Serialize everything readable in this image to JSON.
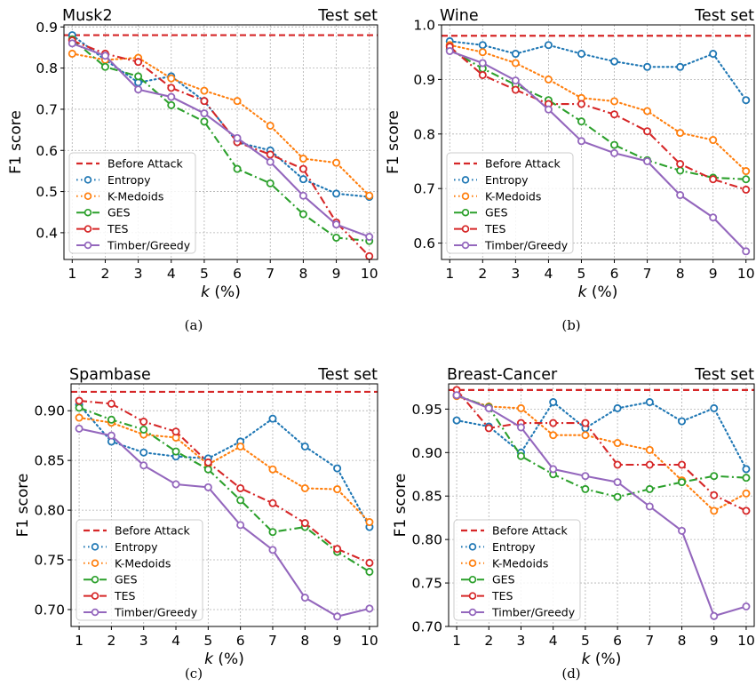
{
  "series_styles": [
    {
      "name": "Entropy",
      "color": "#1f77b4",
      "dash": "dotted"
    },
    {
      "name": "K-Medoids",
      "color": "#ff7f0e",
      "dash": "dotted"
    },
    {
      "name": "GES",
      "color": "#2ca02c",
      "dash": "dashdot"
    },
    {
      "name": "TES",
      "color": "#d62728",
      "dash": "dashdot"
    },
    {
      "name": "Timber/Greedy",
      "color": "#9467bd",
      "dash": "solid"
    }
  ],
  "baseline_style": {
    "name": "Before Attack",
    "color": "#d62728",
    "dash": "dashed"
  },
  "chart_data": [
    {
      "type": "line",
      "caption": "(a)",
      "title_left": "Musk2",
      "title_right": "Test set",
      "xlabel": "k (%)",
      "ylabel": "F1 score",
      "x": [
        1,
        2,
        3,
        4,
        5,
        6,
        7,
        8,
        9,
        10
      ],
      "xlim": [
        0.75,
        10.25
      ],
      "ylim": [
        0.335,
        0.905
      ],
      "yticks": [
        0.4,
        0.5,
        0.6,
        0.7,
        0.8,
        0.9
      ],
      "ytick_labels": [
        "0.4",
        "0.5",
        "0.6",
        "0.7",
        "0.8",
        "0.9"
      ],
      "grid": true,
      "legend": "lower-left",
      "baseline": {
        "name": "Before Attack",
        "value": 0.88
      },
      "series": [
        {
          "name": "Entropy",
          "values": [
            0.88,
            0.82,
            0.765,
            0.78,
            0.72,
            0.62,
            0.6,
            0.53,
            0.495,
            0.487
          ]
        },
        {
          "name": "K-Medoids",
          "values": [
            0.835,
            0.82,
            0.825,
            0.775,
            0.745,
            0.72,
            0.66,
            0.58,
            0.57,
            0.49
          ]
        },
        {
          "name": "GES",
          "values": [
            0.87,
            0.803,
            0.78,
            0.71,
            0.67,
            0.555,
            0.52,
            0.445,
            0.388,
            0.38
          ]
        },
        {
          "name": "TES",
          "values": [
            0.867,
            0.835,
            0.815,
            0.752,
            0.72,
            0.62,
            0.59,
            0.555,
            0.425,
            0.343
          ]
        },
        {
          "name": "Timber/Greedy",
          "values": [
            0.86,
            0.83,
            0.748,
            0.73,
            0.69,
            0.63,
            0.572,
            0.49,
            0.42,
            0.39
          ]
        }
      ]
    },
    {
      "type": "line",
      "caption": "(b)",
      "title_left": "Wine",
      "title_right": "Test set",
      "xlabel": "k (%)",
      "ylabel": "F1 score",
      "x": [
        1,
        2,
        3,
        4,
        5,
        6,
        7,
        8,
        9,
        10
      ],
      "xlim": [
        0.75,
        10.25
      ],
      "ylim": [
        0.57,
        1.0
      ],
      "yticks": [
        0.6,
        0.7,
        0.8,
        0.9,
        1.0
      ],
      "ytick_labels": [
        "0.6",
        "0.7",
        "0.8",
        "0.9",
        "1.0"
      ],
      "grid": true,
      "legend": "lower-left",
      "baseline": {
        "name": "Before Attack",
        "value": 0.98
      },
      "series": [
        {
          "name": "Entropy",
          "values": [
            0.97,
            0.963,
            0.947,
            0.963,
            0.947,
            0.933,
            0.923,
            0.923,
            0.947,
            0.862
          ]
        },
        {
          "name": "K-Medoids",
          "values": [
            0.963,
            0.95,
            0.93,
            0.9,
            0.866,
            0.86,
            0.842,
            0.802,
            0.789,
            0.732
          ]
        },
        {
          "name": "GES",
          "values": [
            0.955,
            0.92,
            0.89,
            0.862,
            0.823,
            0.78,
            0.752,
            0.733,
            0.72,
            0.717
          ]
        },
        {
          "name": "TES",
          "values": [
            0.96,
            0.908,
            0.881,
            0.855,
            0.855,
            0.836,
            0.805,
            0.745,
            0.717,
            0.698
          ]
        },
        {
          "name": "Timber/Greedy",
          "values": [
            0.952,
            0.93,
            0.898,
            0.845,
            0.787,
            0.765,
            0.75,
            0.688,
            0.647,
            0.585
          ]
        }
      ]
    },
    {
      "type": "line",
      "caption": "(c)",
      "title_left": "Spambase",
      "title_right": "Test set",
      "xlabel": "k (%)",
      "ylabel": "F1 score",
      "x": [
        1,
        2,
        3,
        4,
        5,
        6,
        7,
        8,
        9,
        10
      ],
      "xlim": [
        0.75,
        10.25
      ],
      "ylim": [
        0.683,
        0.927
      ],
      "yticks": [
        0.7,
        0.75,
        0.8,
        0.85,
        0.9
      ],
      "ytick_labels": [
        "0.70",
        "0.75",
        "0.80",
        "0.85",
        "0.90"
      ],
      "grid": true,
      "legend": "lower-left",
      "baseline": {
        "name": "Before Attack",
        "value": 0.919
      },
      "series": [
        {
          "name": "Entropy",
          "values": [
            0.906,
            0.869,
            0.858,
            0.854,
            0.852,
            0.869,
            0.892,
            0.864,
            0.842,
            0.783
          ]
        },
        {
          "name": "K-Medoids",
          "values": [
            0.893,
            0.888,
            0.876,
            0.873,
            0.846,
            0.864,
            0.841,
            0.822,
            0.821,
            0.788
          ]
        },
        {
          "name": "GES",
          "values": [
            0.903,
            0.891,
            0.881,
            0.859,
            0.841,
            0.81,
            0.778,
            0.783,
            0.758,
            0.738
          ]
        },
        {
          "name": "TES",
          "values": [
            0.91,
            0.907,
            0.889,
            0.879,
            0.848,
            0.822,
            0.807,
            0.787,
            0.761,
            0.747
          ]
        },
        {
          "name": "Timber/Greedy",
          "values": [
            0.882,
            0.875,
            0.845,
            0.826,
            0.823,
            0.785,
            0.76,
            0.712,
            0.693,
            0.701
          ]
        }
      ]
    },
    {
      "type": "line",
      "caption": "(d)",
      "title_left": "Breast-Cancer",
      "title_right": "Test set",
      "xlabel": "k (%)",
      "ylabel": "F1 score",
      "x": [
        1,
        2,
        3,
        4,
        5,
        6,
        7,
        8,
        9,
        10
      ],
      "xlim": [
        0.75,
        10.25
      ],
      "ylim": [
        0.7,
        0.979
      ],
      "yticks": [
        0.7,
        0.75,
        0.8,
        0.85,
        0.9,
        0.95
      ],
      "ytick_labels": [
        "0.70",
        "0.75",
        "0.80",
        "0.85",
        "0.90",
        "0.95"
      ],
      "grid": true,
      "legend": "lower-left",
      "baseline": {
        "name": "Before Attack",
        "value": 0.972
      },
      "series": [
        {
          "name": "Entropy",
          "values": [
            0.937,
            0.93,
            0.9,
            0.958,
            0.928,
            0.951,
            0.958,
            0.936,
            0.951,
            0.881
          ]
        },
        {
          "name": "K-Medoids",
          "values": [
            0.965,
            0.953,
            0.951,
            0.92,
            0.92,
            0.911,
            0.903,
            0.868,
            0.833,
            0.853
          ]
        },
        {
          "name": "GES",
          "values": [
            0.966,
            0.952,
            0.896,
            0.875,
            0.858,
            0.849,
            0.858,
            0.866,
            0.873,
            0.871
          ]
        },
        {
          "name": "TES",
          "values": [
            0.972,
            0.928,
            0.934,
            0.934,
            0.934,
            0.886,
            0.886,
            0.886,
            0.851,
            0.833
          ]
        },
        {
          "name": "Timber/Greedy",
          "values": [
            0.966,
            0.951,
            0.929,
            0.881,
            0.873,
            0.866,
            0.838,
            0.81,
            0.712,
            0.723
          ]
        }
      ]
    }
  ]
}
